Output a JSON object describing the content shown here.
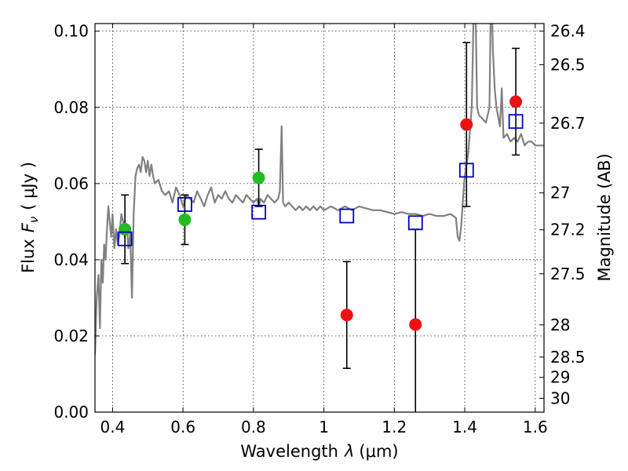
{
  "chart_data": {
    "type": "scatter",
    "xlabel_text": "Wavelength",
    "xlabel_symbol": "λ",
    "xlabel_unit": "(μm)",
    "ylabel_text": "Flux",
    "ylabel_symbol": "F",
    "ylabel_subscript": "ν",
    "ylabel_unit": "( μJy )",
    "y2label": "Magnitude (AB)",
    "xlim": [
      0.35,
      1.625
    ],
    "ylim": [
      0.0,
      0.102
    ],
    "grid": true,
    "x_ticks": [
      {
        "v": 0.4,
        "label": "0.4"
      },
      {
        "v": 0.6,
        "label": "0.6"
      },
      {
        "v": 0.8,
        "label": "0.8"
      },
      {
        "v": 1.0,
        "label": "1"
      },
      {
        "v": 1.2,
        "label": "1.2"
      },
      {
        "v": 1.4,
        "label": "1.4"
      },
      {
        "v": 1.6,
        "label": "1.6"
      }
    ],
    "y_ticks": [
      {
        "v": 0.0,
        "label": "0.00"
      },
      {
        "v": 0.02,
        "label": "0.02"
      },
      {
        "v": 0.04,
        "label": "0.04"
      },
      {
        "v": 0.06,
        "label": "0.06"
      },
      {
        "v": 0.08,
        "label": "0.08"
      },
      {
        "v": 0.1,
        "label": "0.10"
      }
    ],
    "y2_ticks": [
      {
        "mag": 26.4,
        "label": "26.4"
      },
      {
        "mag": 26.5,
        "label": "26.5"
      },
      {
        "mag": 26.7,
        "label": "26.7"
      },
      {
        "mag": 27.0,
        "label": "27"
      },
      {
        "mag": 27.2,
        "label": "27.2"
      },
      {
        "mag": 27.5,
        "label": "27.5"
      },
      {
        "mag": 28.0,
        "label": "28"
      },
      {
        "mag": 28.5,
        "label": "28.5"
      },
      {
        "mag": 29.0,
        "label": "29"
      },
      {
        "mag": 30.0,
        "label": "30"
      }
    ],
    "sed_model": {
      "color": "#808080",
      "points": [
        [
          0.35,
          0.015
        ],
        [
          0.355,
          0.03
        ],
        [
          0.36,
          0.036
        ],
        [
          0.364,
          0.022
        ],
        [
          0.368,
          0.04
        ],
        [
          0.372,
          0.034
        ],
        [
          0.376,
          0.044
        ],
        [
          0.38,
          0.04
        ],
        [
          0.384,
          0.048
        ],
        [
          0.388,
          0.054
        ],
        [
          0.392,
          0.05
        ],
        [
          0.396,
          0.046
        ],
        [
          0.4,
          0.052
        ],
        [
          0.405,
          0.043
        ],
        [
          0.41,
          0.048
        ],
        [
          0.415,
          0.044
        ],
        [
          0.42,
          0.047
        ],
        [
          0.425,
          0.052
        ],
        [
          0.43,
          0.05
        ],
        [
          0.435,
          0.046
        ],
        [
          0.44,
          0.049
        ],
        [
          0.445,
          0.043
        ],
        [
          0.45,
          0.047
        ],
        [
          0.455,
          0.03
        ],
        [
          0.46,
          0.052
        ],
        [
          0.465,
          0.062
        ],
        [
          0.47,
          0.064
        ],
        [
          0.475,
          0.065
        ],
        [
          0.48,
          0.063
        ],
        [
          0.485,
          0.067
        ],
        [
          0.49,
          0.066
        ],
        [
          0.495,
          0.063
        ],
        [
          0.5,
          0.066
        ],
        [
          0.505,
          0.062
        ],
        [
          0.51,
          0.065
        ],
        [
          0.515,
          0.062
        ],
        [
          0.52,
          0.06
        ],
        [
          0.53,
          0.061
        ],
        [
          0.54,
          0.058
        ],
        [
          0.55,
          0.057
        ],
        [
          0.56,
          0.058
        ],
        [
          0.57,
          0.055
        ],
        [
          0.58,
          0.059
        ],
        [
          0.59,
          0.057
        ],
        [
          0.6,
          0.054
        ],
        [
          0.61,
          0.057
        ],
        [
          0.62,
          0.056
        ],
        [
          0.63,
          0.055
        ],
        [
          0.64,
          0.058
        ],
        [
          0.65,
          0.056
        ],
        [
          0.66,
          0.054
        ],
        [
          0.67,
          0.057
        ],
        [
          0.68,
          0.059
        ],
        [
          0.69,
          0.055
        ],
        [
          0.7,
          0.057
        ],
        [
          0.71,
          0.056
        ],
        [
          0.72,
          0.058
        ],
        [
          0.73,
          0.056
        ],
        [
          0.74,
          0.055
        ],
        [
          0.75,
          0.057
        ],
        [
          0.76,
          0.056
        ],
        [
          0.77,
          0.055
        ],
        [
          0.78,
          0.057
        ],
        [
          0.79,
          0.056
        ],
        [
          0.8,
          0.055
        ],
        [
          0.81,
          0.056
        ],
        [
          0.815,
          0.054
        ],
        [
          0.82,
          0.056
        ],
        [
          0.83,
          0.055
        ],
        [
          0.84,
          0.057
        ],
        [
          0.85,
          0.056
        ],
        [
          0.86,
          0.055
        ],
        [
          0.87,
          0.056
        ],
        [
          0.875,
          0.058
        ],
        [
          0.88,
          0.075
        ],
        [
          0.884,
          0.055
        ],
        [
          0.89,
          0.054
        ],
        [
          0.9,
          0.055
        ],
        [
          0.91,
          0.054
        ],
        [
          0.92,
          0.053
        ],
        [
          0.93,
          0.054
        ],
        [
          0.94,
          0.053
        ],
        [
          0.95,
          0.054
        ],
        [
          0.96,
          0.053
        ],
        [
          0.97,
          0.054
        ],
        [
          0.98,
          0.053
        ],
        [
          0.99,
          0.054
        ],
        [
          1.0,
          0.053
        ],
        [
          1.02,
          0.054
        ],
        [
          1.04,
          0.053
        ],
        [
          1.06,
          0.054
        ],
        [
          1.08,
          0.053
        ],
        [
          1.1,
          0.054
        ],
        [
          1.12,
          0.0535
        ],
        [
          1.14,
          0.053
        ],
        [
          1.16,
          0.053
        ],
        [
          1.18,
          0.0525
        ],
        [
          1.2,
          0.052
        ],
        [
          1.22,
          0.0525
        ],
        [
          1.24,
          0.052
        ],
        [
          1.26,
          0.052
        ],
        [
          1.28,
          0.0515
        ],
        [
          1.3,
          0.052
        ],
        [
          1.32,
          0.0515
        ],
        [
          1.34,
          0.0515
        ],
        [
          1.36,
          0.052
        ],
        [
          1.375,
          0.051
        ],
        [
          1.38,
          0.046
        ],
        [
          1.385,
          0.045
        ],
        [
          1.39,
          0.049
        ],
        [
          1.395,
          0.056
        ],
        [
          1.4,
          0.062
        ],
        [
          1.41,
          0.068
        ],
        [
          1.42,
          0.08
        ],
        [
          1.425,
          0.105
        ],
        [
          1.43,
          0.11
        ],
        [
          1.435,
          0.08
        ],
        [
          1.44,
          0.078
        ],
        [
          1.45,
          0.077
        ],
        [
          1.46,
          0.076
        ],
        [
          1.47,
          0.08
        ],
        [
          1.475,
          0.115
        ],
        [
          1.48,
          0.095
        ],
        [
          1.485,
          0.085
        ],
        [
          1.49,
          0.08
        ],
        [
          1.5,
          0.075
        ],
        [
          1.505,
          0.085
        ],
        [
          1.51,
          0.072
        ],
        [
          1.52,
          0.073
        ],
        [
          1.53,
          0.071
        ],
        [
          1.54,
          0.072
        ],
        [
          1.55,
          0.071
        ],
        [
          1.56,
          0.073
        ],
        [
          1.57,
          0.07
        ],
        [
          1.58,
          0.071
        ],
        [
          1.59,
          0.071
        ],
        [
          1.6,
          0.07
        ],
        [
          1.61,
          0.07
        ],
        [
          1.625,
          0.07
        ]
      ]
    },
    "series": [
      {
        "marker": "circle",
        "color": "#22bb22",
        "points": [
          {
            "x": 0.435,
            "y": 0.048,
            "err": 0.009
          },
          {
            "x": 0.605,
            "y": 0.0505,
            "err": 0.0065
          },
          {
            "x": 0.815,
            "y": 0.0615,
            "err": 0.0075
          }
        ]
      },
      {
        "marker": "circle",
        "color": "#ee1111",
        "points": [
          {
            "x": 1.065,
            "y": 0.0255,
            "err": 0.014
          },
          {
            "x": 1.26,
            "y": 0.023,
            "err": 0.025
          },
          {
            "x": 1.405,
            "y": 0.0755,
            "err": 0.0215
          },
          {
            "x": 1.545,
            "y": 0.0815,
            "err": 0.014
          }
        ]
      },
      {
        "marker": "square-open",
        "color": "#0000cc",
        "points": [
          {
            "x": 0.435,
            "y": 0.0455
          },
          {
            "x": 0.605,
            "y": 0.0545
          },
          {
            "x": 0.815,
            "y": 0.0525
          },
          {
            "x": 1.065,
            "y": 0.0515
          },
          {
            "x": 1.26,
            "y": 0.0497
          },
          {
            "x": 1.405,
            "y": 0.0635
          },
          {
            "x": 1.545,
            "y": 0.0763
          }
        ]
      }
    ]
  }
}
